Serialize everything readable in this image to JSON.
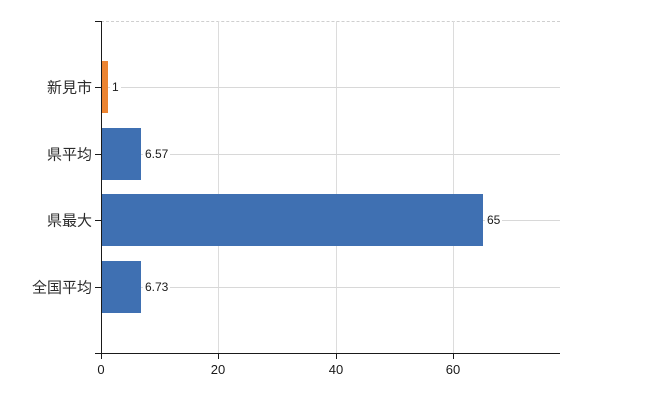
{
  "chart_data": {
    "type": "bar",
    "orientation": "horizontal",
    "title": "",
    "categories": [
      "新見市",
      "県平均",
      "県最大",
      "全国平均"
    ],
    "values": [
      1,
      6.57,
      65,
      6.73
    ],
    "value_labels": [
      "1",
      "6.57",
      "65",
      "6.73"
    ],
    "bar_colors": [
      "#ec8431",
      "#3f70b2",
      "#3f70b2",
      "#3f70b2"
    ],
    "x_ticks": [
      0,
      20,
      40,
      60
    ],
    "x_tick_labels": [
      "0",
      "20",
      "40",
      "60"
    ],
    "xlim": [
      0,
      78
    ],
    "ylabel": "",
    "xlabel": "",
    "grid": true,
    "legend": "none",
    "gridline_color": "#d8d8d8",
    "axis_color": "#1a1a1a"
  }
}
